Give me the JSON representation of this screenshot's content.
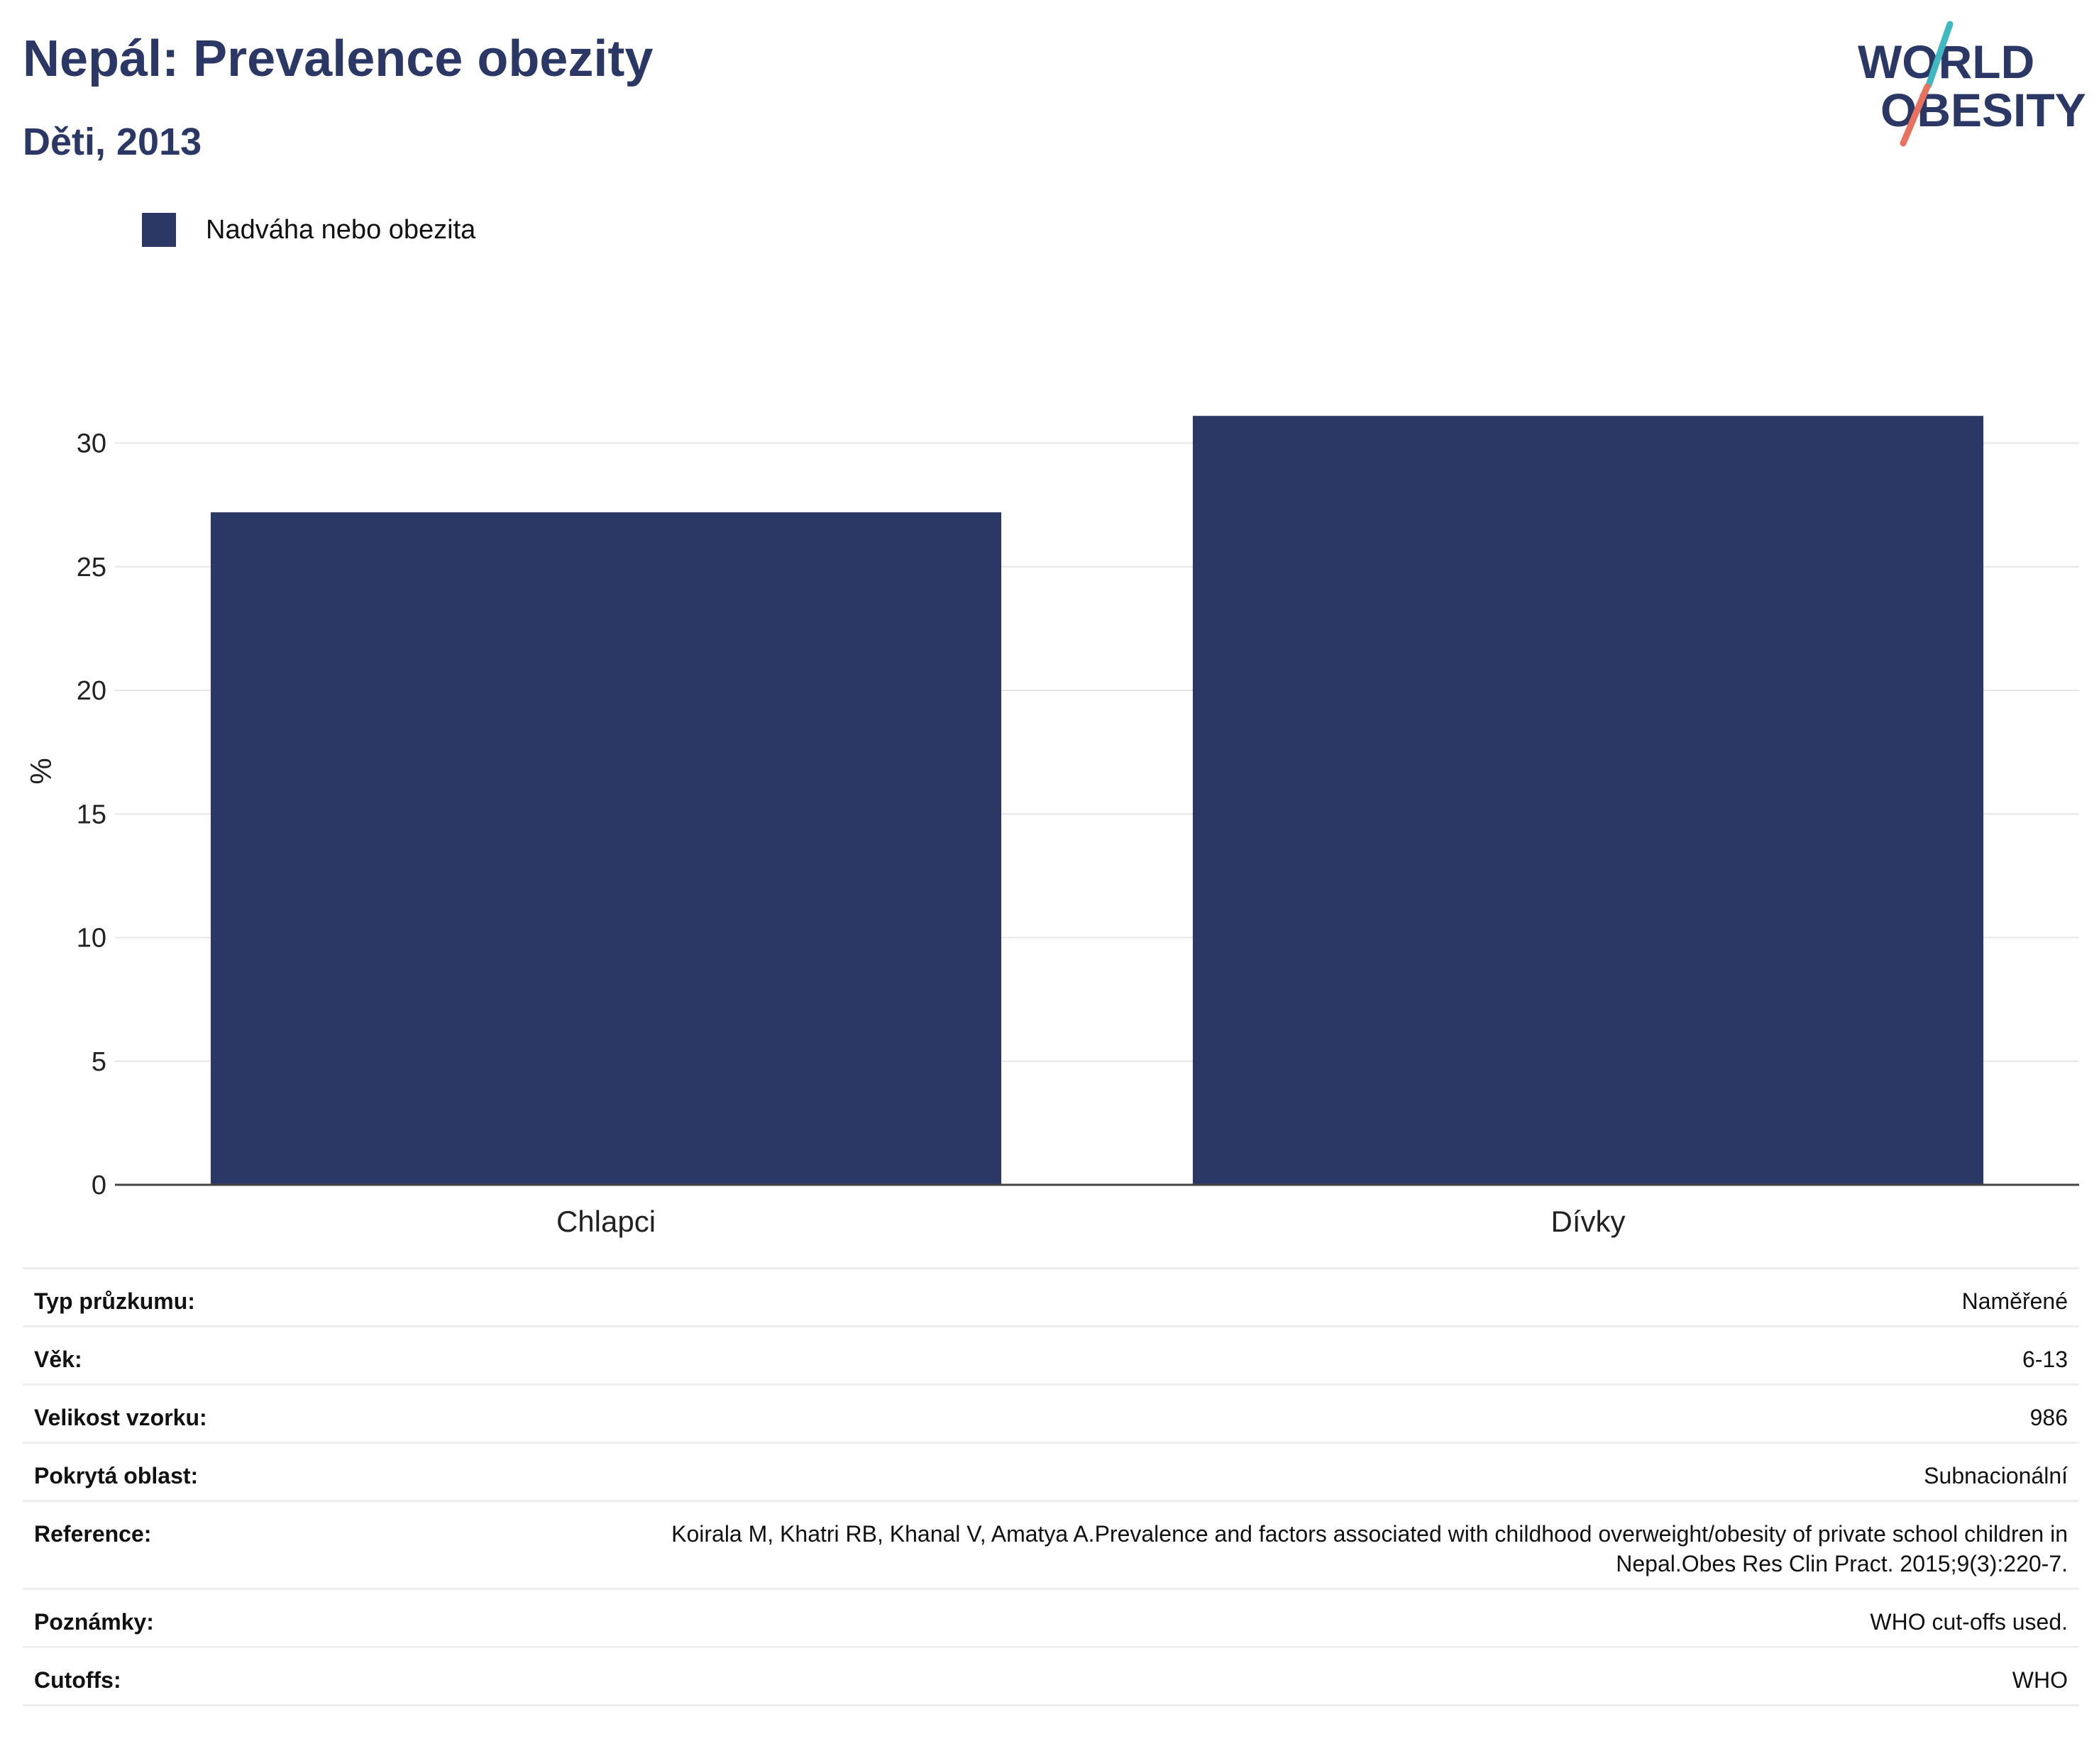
{
  "header": {
    "title": "Nepál: Prevalence obezity",
    "subtitle": "Děti, 2013",
    "logo_line1": "WORLD",
    "logo_line2": "OBESITY"
  },
  "colors": {
    "bar": "#2b3865",
    "title": "#2b3865",
    "logo_teal": "#3fb8c0",
    "logo_coral": "#e8715f"
  },
  "chart_data": {
    "type": "bar",
    "categories": [
      "Chlapci",
      "Dívky"
    ],
    "series": [
      {
        "name": "Nadváha nebo obezita",
        "values": [
          27.2,
          31.1
        ]
      }
    ],
    "ylabel": "%",
    "ylim": [
      0,
      33
    ],
    "yticks": [
      0,
      5,
      10,
      15,
      20,
      25,
      30
    ],
    "grid": true,
    "legend_position": "top-left"
  },
  "meta": [
    {
      "key": "Typ průzkumu:",
      "value": "Naměřené"
    },
    {
      "key": "Věk:",
      "value": "6-13"
    },
    {
      "key": "Velikost vzorku:",
      "value": "986"
    },
    {
      "key": "Pokrytá oblast:",
      "value": "Subnacionální"
    },
    {
      "key": "Reference:",
      "value": "Koirala M, Khatri RB, Khanal V, Amatya A.Prevalence and factors associated with childhood overweight/obesity of private school children in Nepal.Obes Res Clin Pract. 2015;9(3):220-7."
    },
    {
      "key": "Poznámky:",
      "value": "WHO cut-offs used."
    },
    {
      "key": "Cutoffs:",
      "value": "WHO"
    }
  ]
}
